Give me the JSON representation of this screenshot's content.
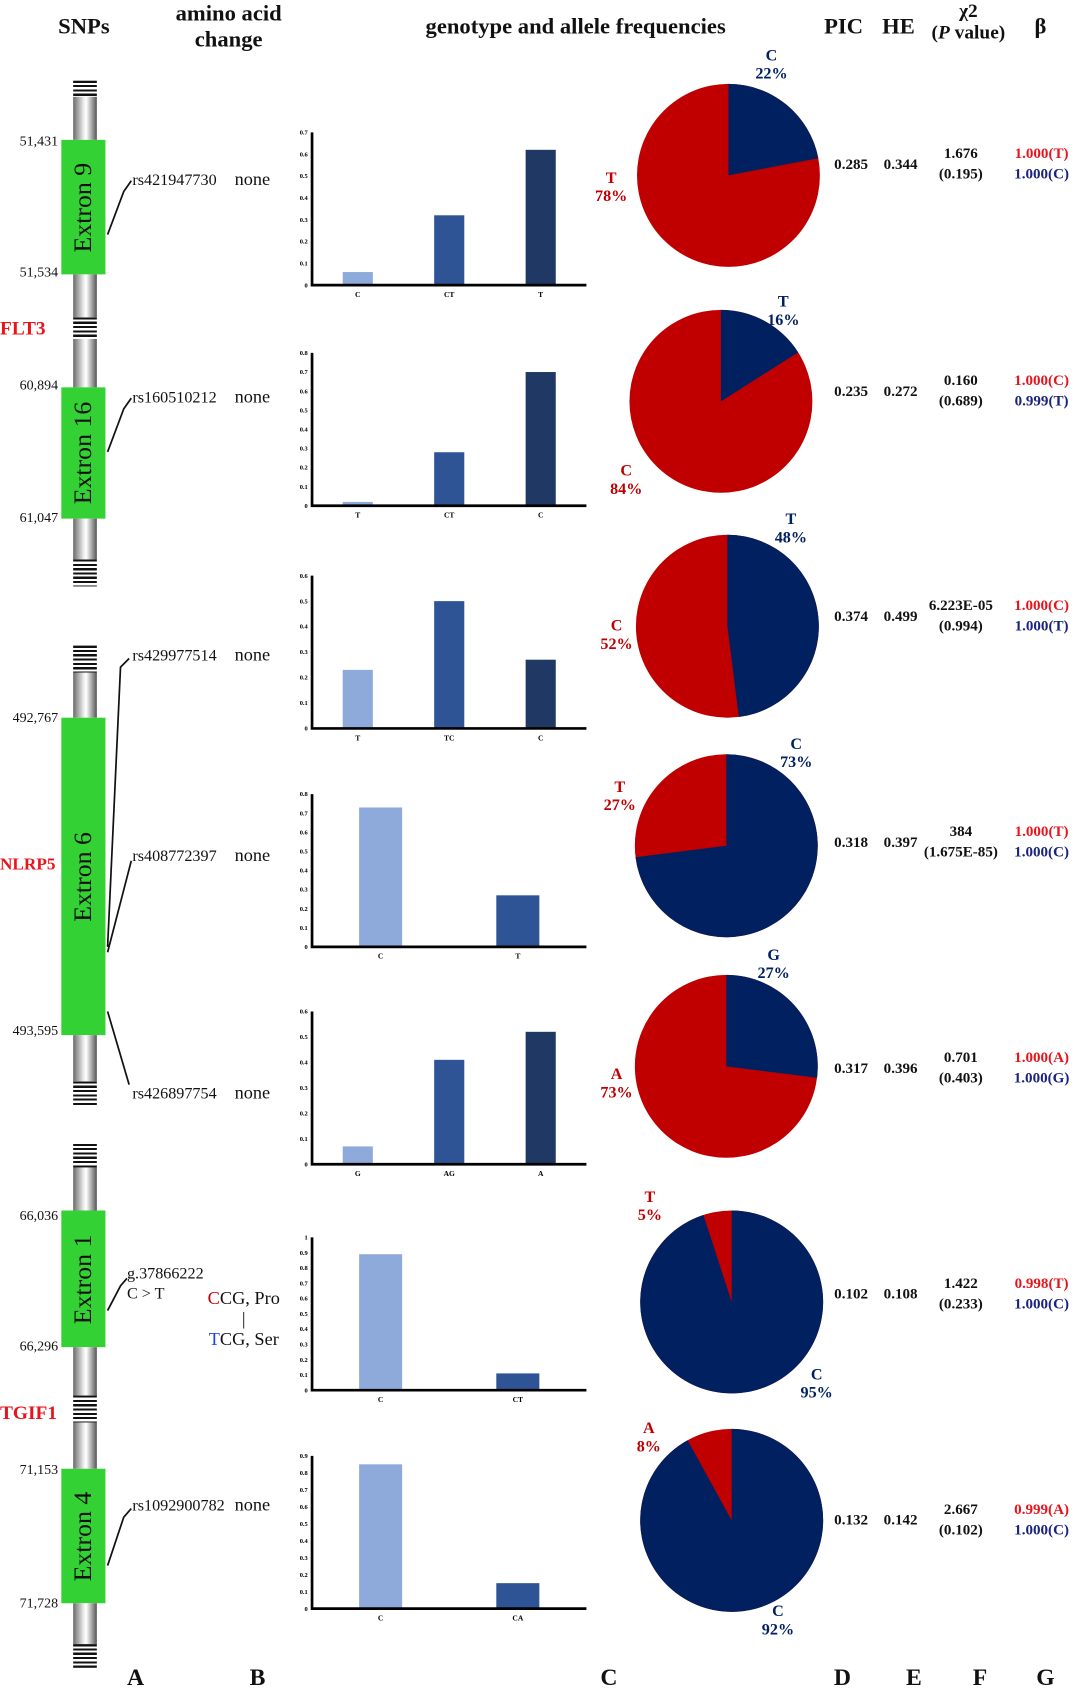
{
  "headers": {
    "snps": "SNPs",
    "aa": "amino acid change",
    "freq": "genotype and allele frequencies",
    "pic": "PIC",
    "he": "HE",
    "chi": "χ2",
    "pval_pre": "(",
    "pval_p": "P",
    "pval_post": " value)",
    "beta": "β"
  },
  "genes": [
    {
      "name": "FLT3"
    },
    {
      "name": "NLRP5"
    },
    {
      "name": "TGIF1"
    }
  ],
  "exons": [
    "Extron 9",
    "Extron 16",
    "Extron 6",
    "Extron 1",
    "Extron 4"
  ],
  "coords": [
    "51,431",
    "51,534",
    "60,894",
    "61,047",
    "492,767",
    "493,595",
    "66,036",
    "66,296",
    "71,153",
    "71,728"
  ],
  "footer": [
    "A",
    "B",
    "C",
    "D",
    "E",
    "F",
    "G"
  ],
  "colors": {
    "red": "#c00000",
    "blue": "#002060",
    "bar_light": "#8eaadb",
    "bar_mid": "#2f5496",
    "bar_dark": "#203864",
    "exon": "#33d133",
    "gene": "#e8141c"
  },
  "rows": [
    {
      "snp": "rs421947730",
      "aa": "none",
      "pic": "0.285",
      "he": "0.344",
      "chi": "1.676",
      "p": "(0.195)",
      "beta_red": "1.000(T)",
      "beta_blue": "1.000(C)"
    },
    {
      "snp": "rs160510212",
      "aa": "none",
      "pic": "0.235",
      "he": "0.272",
      "chi": "0.160",
      "p": "(0.689)",
      "beta_red": "1.000(C)",
      "beta_blue": "0.999(T)"
    },
    {
      "snp": "rs429977514",
      "aa": "none",
      "pic": "0.374",
      "he": "0.499",
      "chi": "6.223E-05",
      "p": "(0.994)",
      "beta_red": "1.000(C)",
      "beta_blue": "1.000(T)"
    },
    {
      "snp": "rs408772397",
      "aa": "none",
      "pic": "0.318",
      "he": "0.397",
      "chi": "384",
      "p": "(1.675E-85)",
      "beta_red": "1.000(T)",
      "beta_blue": "1.000(C)"
    },
    {
      "snp": "rs426897754",
      "aa": "none",
      "pic": "0.317",
      "he": "0.396",
      "chi": "0.701",
      "p": "(0.403)",
      "beta_red": "1.000(A)",
      "beta_blue": "1.000(G)"
    },
    {
      "snp": "g.37866222",
      "snp2": "C > T",
      "aa_ref_base": "C",
      "aa_ref_rest": "CG, Pro",
      "aa_sep": "|",
      "aa_alt_base": "T",
      "aa_alt_rest": "CG, Ser",
      "pic": "0.102",
      "he": "0.108",
      "chi": "1.422",
      "p": "(0.233)",
      "beta_red": "0.998(T)",
      "beta_blue": "1.000(C)"
    },
    {
      "snp": "rs1092900782",
      "aa": "none",
      "pic": "0.132",
      "he": "0.142",
      "chi": "2.667",
      "p": "(0.102)",
      "beta_red": "0.999(A)",
      "beta_blue": "1.000(C)"
    }
  ],
  "chart_data": [
    {
      "type": "bar",
      "categories": [
        "C",
        "CT",
        "T"
      ],
      "values": [
        0.06,
        0.32,
        0.62
      ],
      "ylim": [
        0,
        0.7
      ],
      "step": 0.1,
      "ticks": [
        "0",
        "0.1",
        "0.2",
        "0.3",
        "0.4",
        "0.5",
        "0.6",
        "0.7"
      ]
    },
    {
      "type": "pie",
      "labels": [
        "C",
        "T"
      ],
      "values": [
        22,
        78
      ],
      "label_text": [
        "22%",
        "78%"
      ]
    },
    {
      "type": "bar",
      "categories": [
        "T",
        "CT",
        "C"
      ],
      "values": [
        0.02,
        0.28,
        0.7
      ],
      "ylim": [
        0,
        0.8
      ],
      "step": 0.1,
      "ticks": [
        "0",
        "0.1",
        "0.2",
        "0.3",
        "0.4",
        "0.5",
        "0.6",
        "0.7",
        "0.8"
      ]
    },
    {
      "type": "pie",
      "labels": [
        "T",
        "C"
      ],
      "values": [
        16,
        84
      ],
      "label_text": [
        "16%",
        "84%"
      ]
    },
    {
      "type": "bar",
      "categories": [
        "T",
        "TC",
        "C"
      ],
      "values": [
        0.23,
        0.5,
        0.27
      ],
      "ylim": [
        0,
        0.6
      ],
      "step": 0.1,
      "ticks": [
        "0",
        "0.1",
        "0.2",
        "0.3",
        "0.4",
        "0.5",
        "0.6"
      ]
    },
    {
      "type": "pie",
      "labels": [
        "T",
        "C"
      ],
      "values": [
        48,
        52
      ],
      "label_text": [
        "48%",
        "52%"
      ]
    },
    {
      "type": "bar",
      "categories": [
        "C",
        "T"
      ],
      "values": [
        0.73,
        0.27
      ],
      "ylim": [
        0,
        0.8
      ],
      "step": 0.1,
      "ticks": [
        "0",
        "0.1",
        "0.2",
        "0.3",
        "0.4",
        "0.5",
        "0.6",
        "0.7",
        "0.8"
      ]
    },
    {
      "type": "pie",
      "labels": [
        "C",
        "T"
      ],
      "values": [
        73,
        27
      ],
      "label_text": [
        "73%",
        "27%"
      ]
    },
    {
      "type": "bar",
      "categories": [
        "G",
        "AG",
        "A"
      ],
      "values": [
        0.07,
        0.41,
        0.52
      ],
      "ylim": [
        0,
        0.6
      ],
      "step": 0.1,
      "ticks": [
        "0",
        "0.1",
        "0.2",
        "0.3",
        "0.4",
        "0.5",
        "0.6"
      ]
    },
    {
      "type": "pie",
      "labels": [
        "G",
        "A"
      ],
      "values": [
        27,
        73
      ],
      "label_text": [
        "27%",
        "73%"
      ]
    },
    {
      "type": "bar",
      "categories": [
        "C",
        "CT"
      ],
      "values": [
        0.89,
        0.11
      ],
      "ylim": [
        0,
        1
      ],
      "step": 0.1,
      "ticks": [
        "0",
        "0.1",
        "0.2",
        "0.3",
        "0.4",
        "0.5",
        "0.6",
        "0.7",
        "0.8",
        "0.9",
        "1"
      ]
    },
    {
      "type": "pie",
      "labels": [
        "C",
        "T"
      ],
      "values": [
        95,
        5
      ],
      "label_text": [
        "95%",
        "5%"
      ]
    },
    {
      "type": "bar",
      "categories": [
        "C",
        "CA"
      ],
      "values": [
        0.85,
        0.15
      ],
      "ylim": [
        0,
        0.9
      ],
      "step": 0.1,
      "ticks": [
        "0",
        "0.1",
        "0.2",
        "0.3",
        "0.4",
        "0.5",
        "0.6",
        "0.7",
        "0.8",
        "0.9"
      ]
    },
    {
      "type": "pie",
      "labels": [
        "C",
        "A"
      ],
      "values": [
        92,
        8
      ],
      "label_text": [
        "92%",
        "8%"
      ]
    }
  ]
}
